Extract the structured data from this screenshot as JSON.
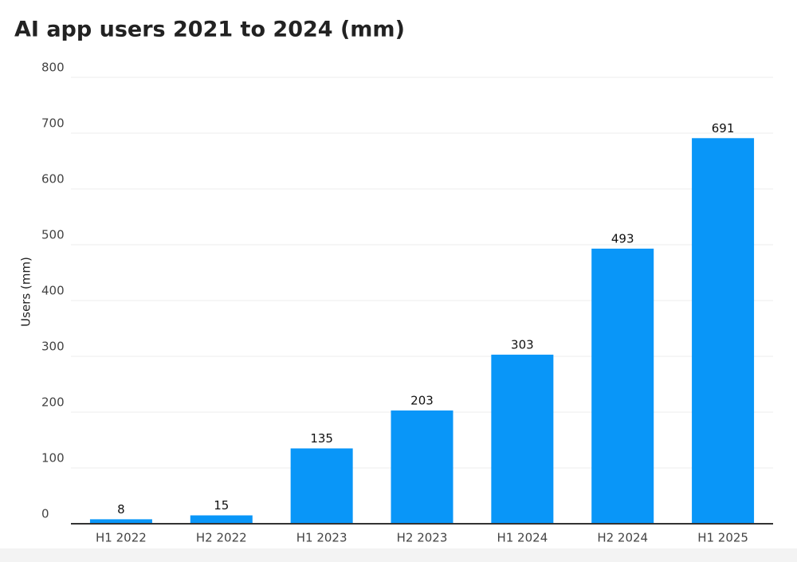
{
  "chart_data": {
    "type": "bar",
    "title": "AI app users 2021 to 2024 (mm)",
    "y_label": "Users (mm)",
    "categories": [
      "H1 2022",
      "H2 2022",
      "H1 2023",
      "H2 2023",
      "H1 2024",
      "H2 2024",
      "H1 2025"
    ],
    "values": [
      8,
      15,
      135,
      203,
      303,
      493,
      691
    ],
    "color": "#0996f8",
    "ylim": [
      0,
      800
    ],
    "yticks": [
      0,
      100,
      200,
      300,
      400,
      500,
      600,
      700,
      800
    ],
    "grid": true
  }
}
